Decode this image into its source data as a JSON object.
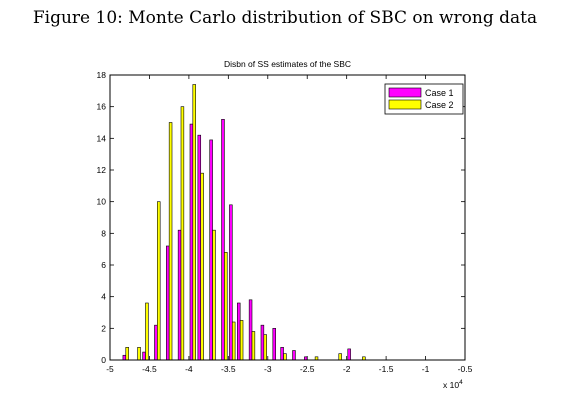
{
  "caption": "Figure 10: Monte Carlo distribution of SBC on wrong data",
  "chart_data": {
    "type": "bar",
    "title": "Disbn of SS estimates of the SBC",
    "xlabel": "",
    "ylabel": "",
    "x_multiplier_label": "x 10",
    "x_multiplier_exponent": "4",
    "xlim": [
      -50000,
      -5000
    ],
    "ylim": [
      0,
      18
    ],
    "xticks": [
      -50000,
      -45000,
      -40000,
      -35000,
      -30000,
      -25000,
      -20000,
      -15000,
      -10000,
      -5000
    ],
    "xtick_labels": [
      "-5",
      "-4.5",
      "-4",
      "-3.5",
      "-3",
      "-2.5",
      "-2",
      "-1.5",
      "-1",
      "-0.5"
    ],
    "yticks": [
      0,
      2,
      4,
      6,
      8,
      10,
      12,
      14,
      16,
      18
    ],
    "ytick_labels": [
      "0",
      "2",
      "4",
      "6",
      "8",
      "10",
      "12",
      "14",
      "16",
      "18"
    ],
    "grid": false,
    "legend_position": "top-right",
    "bin_width": 1000,
    "x": [
      -48000,
      -46500,
      -45500,
      -44000,
      -42500,
      -41000,
      -39500,
      -38500,
      -37000,
      -35500,
      -34500,
      -33500,
      -32000,
      -30500,
      -29000,
      -28000,
      -26500,
      -25000,
      -24000,
      -22500,
      -21000,
      -19500,
      -18000,
      -15500,
      -14000,
      -10000,
      -9000
    ],
    "series": [
      {
        "name": "Case 1",
        "color": "#ff00ff",
        "values": [
          0.3,
          0,
          0.5,
          2.2,
          7.2,
          8.2,
          14.9,
          14.2,
          13.9,
          15.2,
          9.8,
          3.6,
          3.8,
          2.2,
          2.0,
          0.8,
          0.6,
          0.2,
          0,
          0,
          0,
          0.7,
          0,
          0,
          0,
          0,
          0
        ]
      },
      {
        "name": "Case 2",
        "color": "#ffff00",
        "values": [
          0.8,
          0.8,
          3.6,
          10.0,
          15.0,
          16.0,
          17.4,
          11.8,
          8.2,
          6.8,
          2.4,
          2.5,
          1.8,
          1.6,
          0,
          0.4,
          0,
          0,
          0.2,
          0,
          0.4,
          0,
          0.2,
          0,
          0,
          0,
          0
        ]
      }
    ]
  }
}
